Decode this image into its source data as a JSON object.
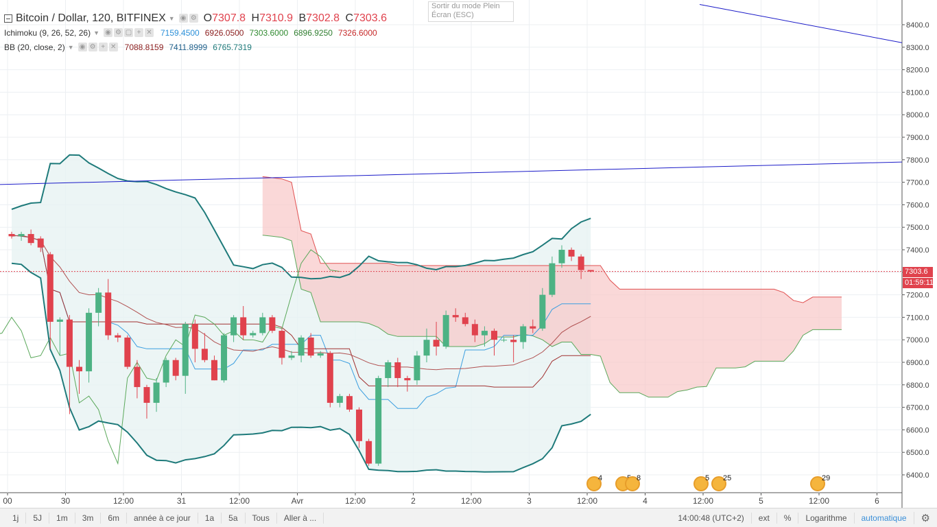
{
  "legend": {
    "symbol": "Bitcoin / Dollar, 120, BITFINEX",
    "ohlc": [
      {
        "k": "O",
        "v": "7307.8"
      },
      {
        "k": "H",
        "v": "7310.9"
      },
      {
        "k": "B",
        "v": "7302.8"
      },
      {
        "k": "C",
        "v": "7303.6"
      }
    ],
    "ichimoku": {
      "name": "Ichimoku (9, 26, 52, 26)",
      "values": [
        "7159.4500",
        "6926.0500",
        "7303.6000",
        "6896.9250",
        "7326.6000"
      ],
      "colors": [
        "#2a8fd8",
        "#8a1c1c",
        "#2f8a2f",
        "#2f7d2f",
        "#c62828"
      ]
    },
    "bb": {
      "name": "BB (20, close, 2)",
      "values": [
        "7088.8159",
        "7411.8999",
        "6765.7319"
      ],
      "colors": [
        "#8a1c1c",
        "#1e5f8a",
        "#1e7a7a"
      ]
    }
  },
  "tooltip": {
    "line1": "Sortir du mode Plein",
    "line2": "Écran (ESC)"
  },
  "price_axis": {
    "ticks": [
      "8400.0",
      "8300.0",
      "8200.0",
      "8100.0",
      "8000.0",
      "7900.0",
      "7800.0",
      "7700.0",
      "7600.0",
      "7500.0",
      "7400.0",
      "7300.0",
      "7200.0",
      "7100.0",
      "7000.0",
      "6900.0",
      "6800.0",
      "6700.0",
      "6600.0",
      "6500.0",
      "6400.0"
    ],
    "last_price": "7303.6",
    "countdown": "01:59:11",
    "last_price_color": "#e0424d"
  },
  "time_axis": {
    "ticks": [
      "00",
      "30",
      "12:00",
      "31",
      "12:00",
      "Avr",
      "12:00",
      "2",
      "12:00",
      "3",
      "12:00",
      "4",
      "12:00",
      "5",
      "12:00",
      "6"
    ]
  },
  "events": [
    {
      "label": "4"
    },
    {
      "label": "5"
    },
    {
      "label": "8"
    },
    {
      "label": "5"
    },
    {
      "label": "25"
    },
    {
      "label": "29"
    }
  ],
  "toolbar": {
    "ranges": [
      "1j",
      "5J",
      "1m",
      "3m",
      "6m",
      "année à ce jour",
      "1a",
      "5a",
      "Tous",
      "Aller à ..."
    ],
    "time": "14:00:48 (UTC+2)",
    "ext": "ext",
    "percent": "%",
    "log": "Logarithme",
    "auto": "automatique"
  },
  "colors": {
    "up": "#4db284",
    "down": "#e0424d",
    "cloud_red": "#f8c8c8",
    "cloud_green": "#d5ecd5",
    "bb_fill": "#e7f2f2",
    "trendline": "#1a1ac8"
  },
  "chart_data": {
    "type": "candlestick",
    "ylim": [
      6320,
      8460
    ],
    "ohlc": [
      [
        7470,
        7480,
        7450,
        7460
      ],
      [
        7460,
        7480,
        7440,
        7470
      ],
      [
        7470,
        7490,
        7420,
        7430
      ],
      [
        7450,
        7460,
        7390,
        7410
      ],
      [
        7380,
        7390,
        6960,
        7080
      ],
      [
        7080,
        7100,
        6930,
        7090
      ],
      [
        7090,
        7110,
        6670,
        6880
      ],
      [
        6880,
        6910,
        6760,
        6860
      ],
      [
        6860,
        7140,
        6810,
        7120
      ],
      [
        7120,
        7230,
        7060,
        7210
      ],
      [
        7210,
        7270,
        7000,
        7020
      ],
      [
        7020,
        7030,
        6990,
        7010
      ],
      [
        7010,
        7020,
        6870,
        6880
      ],
      [
        6880,
        6910,
        6740,
        6790
      ],
      [
        6790,
        6800,
        6650,
        6720
      ],
      [
        6720,
        6830,
        6680,
        6810
      ],
      [
        6810,
        6920,
        6790,
        6910
      ],
      [
        6910,
        6920,
        6820,
        6840
      ],
      [
        6840,
        7080,
        6760,
        7070
      ],
      [
        7070,
        7090,
        6900,
        6960
      ],
      [
        6960,
        7030,
        6900,
        6910
      ],
      [
        6910,
        6930,
        6820,
        6820
      ],
      [
        6820,
        7030,
        6810,
        7020
      ],
      [
        7020,
        7110,
        6990,
        7100
      ],
      [
        7100,
        7150,
        7000,
        7020
      ],
      [
        7020,
        7040,
        7010,
        7030
      ],
      [
        7030,
        7120,
        7020,
        7100
      ],
      [
        7100,
        7110,
        7030,
        7040
      ],
      [
        7040,
        7050,
        6890,
        6920
      ],
      [
        6920,
        6950,
        6910,
        6930
      ],
      [
        6930,
        7020,
        6900,
        7010
      ],
      [
        7010,
        7030,
        6920,
        6930
      ],
      [
        6930,
        6950,
        6920,
        6940
      ],
      [
        6940,
        6950,
        6700,
        6720
      ],
      [
        6720,
        6760,
        6700,
        6750
      ],
      [
        6750,
        6760,
        6680,
        6690
      ],
      [
        6690,
        6700,
        6520,
        6550
      ],
      [
        6550,
        6560,
        6440,
        6450
      ],
      [
        6450,
        6840,
        6440,
        6830
      ],
      [
        6830,
        6910,
        6790,
        6900
      ],
      [
        6900,
        6920,
        6790,
        6830
      ],
      [
        6830,
        6840,
        6770,
        6820
      ],
      [
        6820,
        6950,
        6800,
        6930
      ],
      [
        6930,
        7050,
        6900,
        7000
      ],
      [
        7000,
        7080,
        6930,
        6970
      ],
      [
        6970,
        7130,
        6960,
        7110
      ],
      [
        7110,
        7140,
        7080,
        7100
      ],
      [
        7100,
        7120,
        7060,
        7070
      ],
      [
        7070,
        7090,
        6990,
        7020
      ],
      [
        7020,
        7060,
        6970,
        7040
      ],
      [
        7040,
        7050,
        6930,
        7000
      ],
      [
        7000,
        7010,
        6990,
        7000
      ],
      [
        7000,
        7020,
        6900,
        6990
      ],
      [
        6990,
        7070,
        6960,
        7060
      ],
      [
        7060,
        7090,
        7030,
        7050
      ],
      [
        7050,
        7230,
        7040,
        7200
      ],
      [
        7200,
        7370,
        7190,
        7340
      ],
      [
        7340,
        7420,
        7320,
        7400
      ],
      [
        7400,
        7410,
        7350,
        7370
      ],
      [
        7370,
        7380,
        7270,
        7310
      ],
      [
        7310,
        7310,
        7300,
        7303.6
      ]
    ]
  }
}
